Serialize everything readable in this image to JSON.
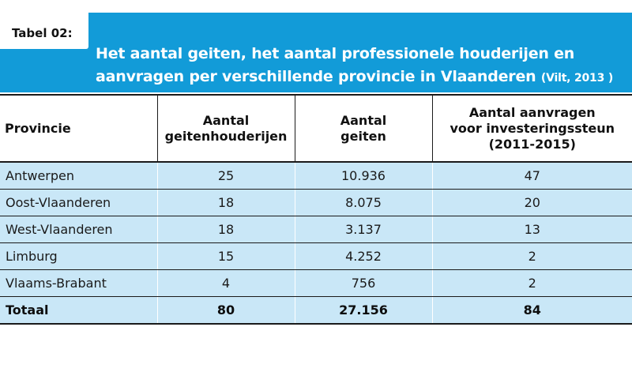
{
  "tag_label": "Tabel 02:",
  "title": {
    "line1": "Het aantal geiten, het aantal professionele houderijen en",
    "line2": "aanvragen per verschillende provincie in Vlaanderen",
    "source": "(Vilt, 2013 )"
  },
  "colors": {
    "banner": "#129bd8",
    "row_fill": "#c9e7f7",
    "text": "#1a1a1a"
  },
  "table": {
    "headers": [
      [
        "Provincie"
      ],
      [
        "Aantal",
        "geitenhouderijen"
      ],
      [
        "Aantal",
        "geiten"
      ],
      [
        "Aantal aanvragen",
        "voor investeringssteun",
        "(2011-2015)"
      ]
    ],
    "rows": [
      [
        "Antwerpen",
        "25",
        "10.936",
        "47"
      ],
      [
        "Oost-Vlaanderen",
        "18",
        "8.075",
        "20"
      ],
      [
        "West-Vlaanderen",
        "18",
        "3.137",
        "13"
      ],
      [
        "Limburg",
        "15",
        "4.252",
        "2"
      ],
      [
        "Vlaams-Brabant",
        "4",
        "756",
        "2"
      ]
    ],
    "total": [
      "Totaal",
      "80",
      "27.156",
      "84"
    ]
  }
}
